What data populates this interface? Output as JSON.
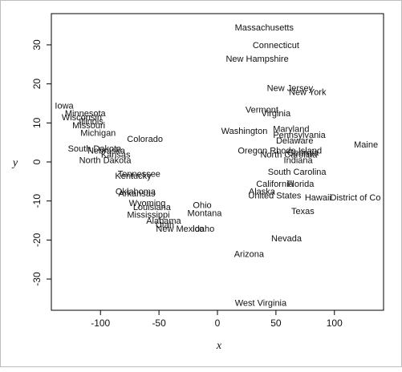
{
  "chart_data": {
    "type": "scatter",
    "title": "",
    "xlabel": "x",
    "ylabel": "y",
    "xlim": [
      -142,
      142
    ],
    "ylim": [
      -38,
      38
    ],
    "xticks": [
      -100,
      -50,
      0,
      50,
      100
    ],
    "yticks": [
      -30,
      -20,
      -10,
      0,
      10,
      20,
      30
    ],
    "grid": false,
    "points": [
      {
        "label": "Massachusetts",
        "x": 40,
        "y": 34.5
      },
      {
        "label": "Connecticut",
        "x": 50,
        "y": 30
      },
      {
        "label": "New Hampshire",
        "x": 34,
        "y": 26.5
      },
      {
        "label": "New Jersey",
        "x": 62,
        "y": 19
      },
      {
        "label": "New York",
        "x": 77,
        "y": 18
      },
      {
        "label": "Vermont",
        "x": 38,
        "y": 13.5
      },
      {
        "label": "Virginia",
        "x": 50,
        "y": 12.5
      },
      {
        "label": "Maryland",
        "x": 63,
        "y": 8.5
      },
      {
        "label": "Pennsylvania",
        "x": 70,
        "y": 7
      },
      {
        "label": "Delaware",
        "x": 66,
        "y": 5.5
      },
      {
        "label": "Washington",
        "x": 23,
        "y": 8
      },
      {
        "label": "Maine",
        "x": 127,
        "y": 4.5
      },
      {
        "label": "Rhode Island",
        "x": 67,
        "y": 3
      },
      {
        "label": "Oregon",
        "x": 30,
        "y": 3
      },
      {
        "label": "North Carolina",
        "x": 61,
        "y": 2
      },
      {
        "label": "Georgia",
        "x": 73,
        "y": 2.5
      },
      {
        "label": "Indiana",
        "x": 69,
        "y": 0.5
      },
      {
        "label": "South Carolina",
        "x": 68,
        "y": -2.5
      },
      {
        "label": "California",
        "x": 49,
        "y": -5.5
      },
      {
        "label": "Florida",
        "x": 71,
        "y": -5.5
      },
      {
        "label": "Alaska",
        "x": 38,
        "y": -7.5
      },
      {
        "label": "United States",
        "x": 49,
        "y": -8.5
      },
      {
        "label": "Hawaii",
        "x": 86,
        "y": -9
      },
      {
        "label": "District of Co",
        "x": 118,
        "y": -9
      },
      {
        "label": "Texas",
        "x": 73,
        "y": -12.5
      },
      {
        "label": "Nevada",
        "x": 59,
        "y": -19.5
      },
      {
        "label": "Arizona",
        "x": 27,
        "y": -23.5
      },
      {
        "label": "West Virginia",
        "x": 37,
        "y": -36
      },
      {
        "label": "Iowa",
        "x": -131,
        "y": 14.5
      },
      {
        "label": "Minnesota",
        "x": -113,
        "y": 12.5
      },
      {
        "label": "Wisconsin",
        "x": -116,
        "y": 11.5
      },
      {
        "label": "Illinois",
        "x": -108,
        "y": 10.5
      },
      {
        "label": "Missouri",
        "x": -110,
        "y": 9.5
      },
      {
        "label": "Michigan",
        "x": -102,
        "y": 7.5
      },
      {
        "label": "Colorado",
        "x": -62,
        "y": 6
      },
      {
        "label": "South Dakota",
        "x": -105,
        "y": 3.5
      },
      {
        "label": "Nebraska",
        "x": -95,
        "y": 3
      },
      {
        "label": "Kansas",
        "x": -87,
        "y": 2
      },
      {
        "label": "North Dakota",
        "x": -96,
        "y": 0.5
      },
      {
        "label": "Tennessee",
        "x": -67,
        "y": -3
      },
      {
        "label": "Kentucky",
        "x": -72,
        "y": -3.5
      },
      {
        "label": "Oklahoma",
        "x": -70,
        "y": -7.5
      },
      {
        "label": "Arkansas",
        "x": -69,
        "y": -8
      },
      {
        "label": "Wyoming",
        "x": -60,
        "y": -10.5
      },
      {
        "label": "Louisiana",
        "x": -56,
        "y": -11.5
      },
      {
        "label": "Ohio",
        "x": -13,
        "y": -11
      },
      {
        "label": "Montana",
        "x": -11,
        "y": -13
      },
      {
        "label": "Mississippi",
        "x": -59,
        "y": -13.5
      },
      {
        "label": "Alabama",
        "x": -46,
        "y": -15
      },
      {
        "label": "Utah",
        "x": -45,
        "y": -16
      },
      {
        "label": "New Mexico",
        "x": -32,
        "y": -17
      },
      {
        "label": "Idaho",
        "x": -12,
        "y": -17
      }
    ]
  }
}
